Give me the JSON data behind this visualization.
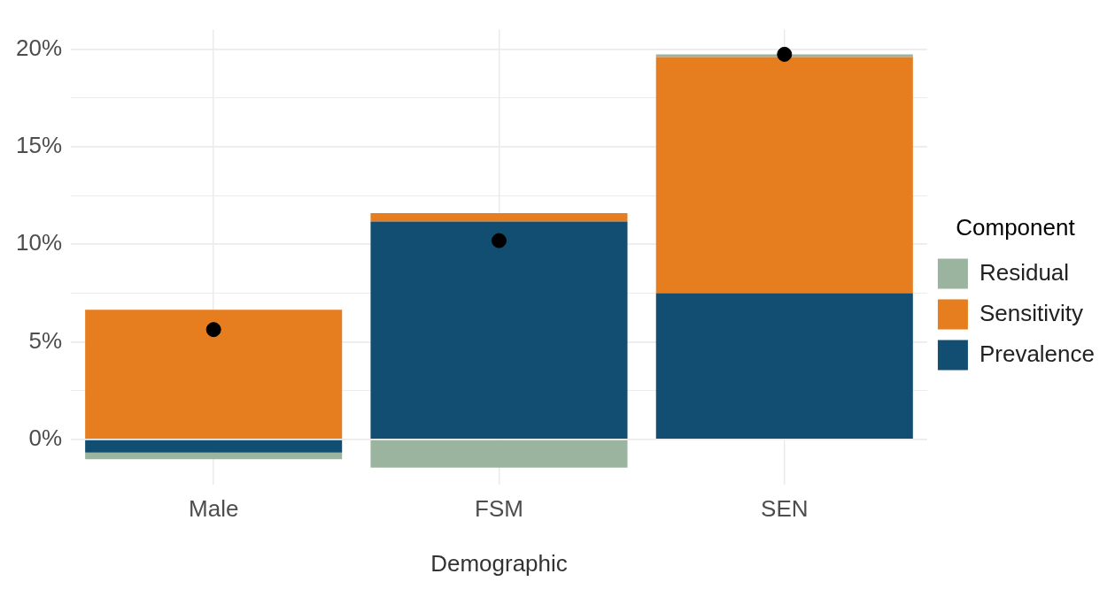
{
  "chart_data": {
    "type": "bar",
    "stacked": true,
    "xlabel": "Demographic",
    "legend_title": "Component",
    "legend": "right",
    "grid": true,
    "categories": [
      "Male",
      "FSM",
      "SEN"
    ],
    "series": [
      {
        "name": "Prevalence",
        "color": "#114e72",
        "values": [
          -0.68,
          11.17,
          7.5
        ]
      },
      {
        "name": "Sensitivity",
        "color": "#e67e1f",
        "values": [
          6.65,
          0.43,
          12.1
        ]
      },
      {
        "name": "Residual",
        "color": "#9bb4a0",
        "values": [
          -0.34,
          -1.45,
          0.13
        ]
      },
      {
        "type": "scatter",
        "color": "#000000",
        "marker": "circle",
        "values": [
          5.63,
          10.19,
          19.74
        ]
      }
    ],
    "ylim": [
      -2.3,
      21
    ],
    "yticks": [
      {
        "value": 0,
        "label": "0%"
      },
      {
        "value": 2.5,
        "label": null
      },
      {
        "value": 5,
        "label": "5%"
      },
      {
        "value": 7.5,
        "label": null
      },
      {
        "value": 10,
        "label": "10%"
      },
      {
        "value": 12.5,
        "label": null
      },
      {
        "value": 15,
        "label": "15%"
      },
      {
        "value": 17.5,
        "label": null
      },
      {
        "value": 20,
        "label": "20%"
      }
    ]
  }
}
